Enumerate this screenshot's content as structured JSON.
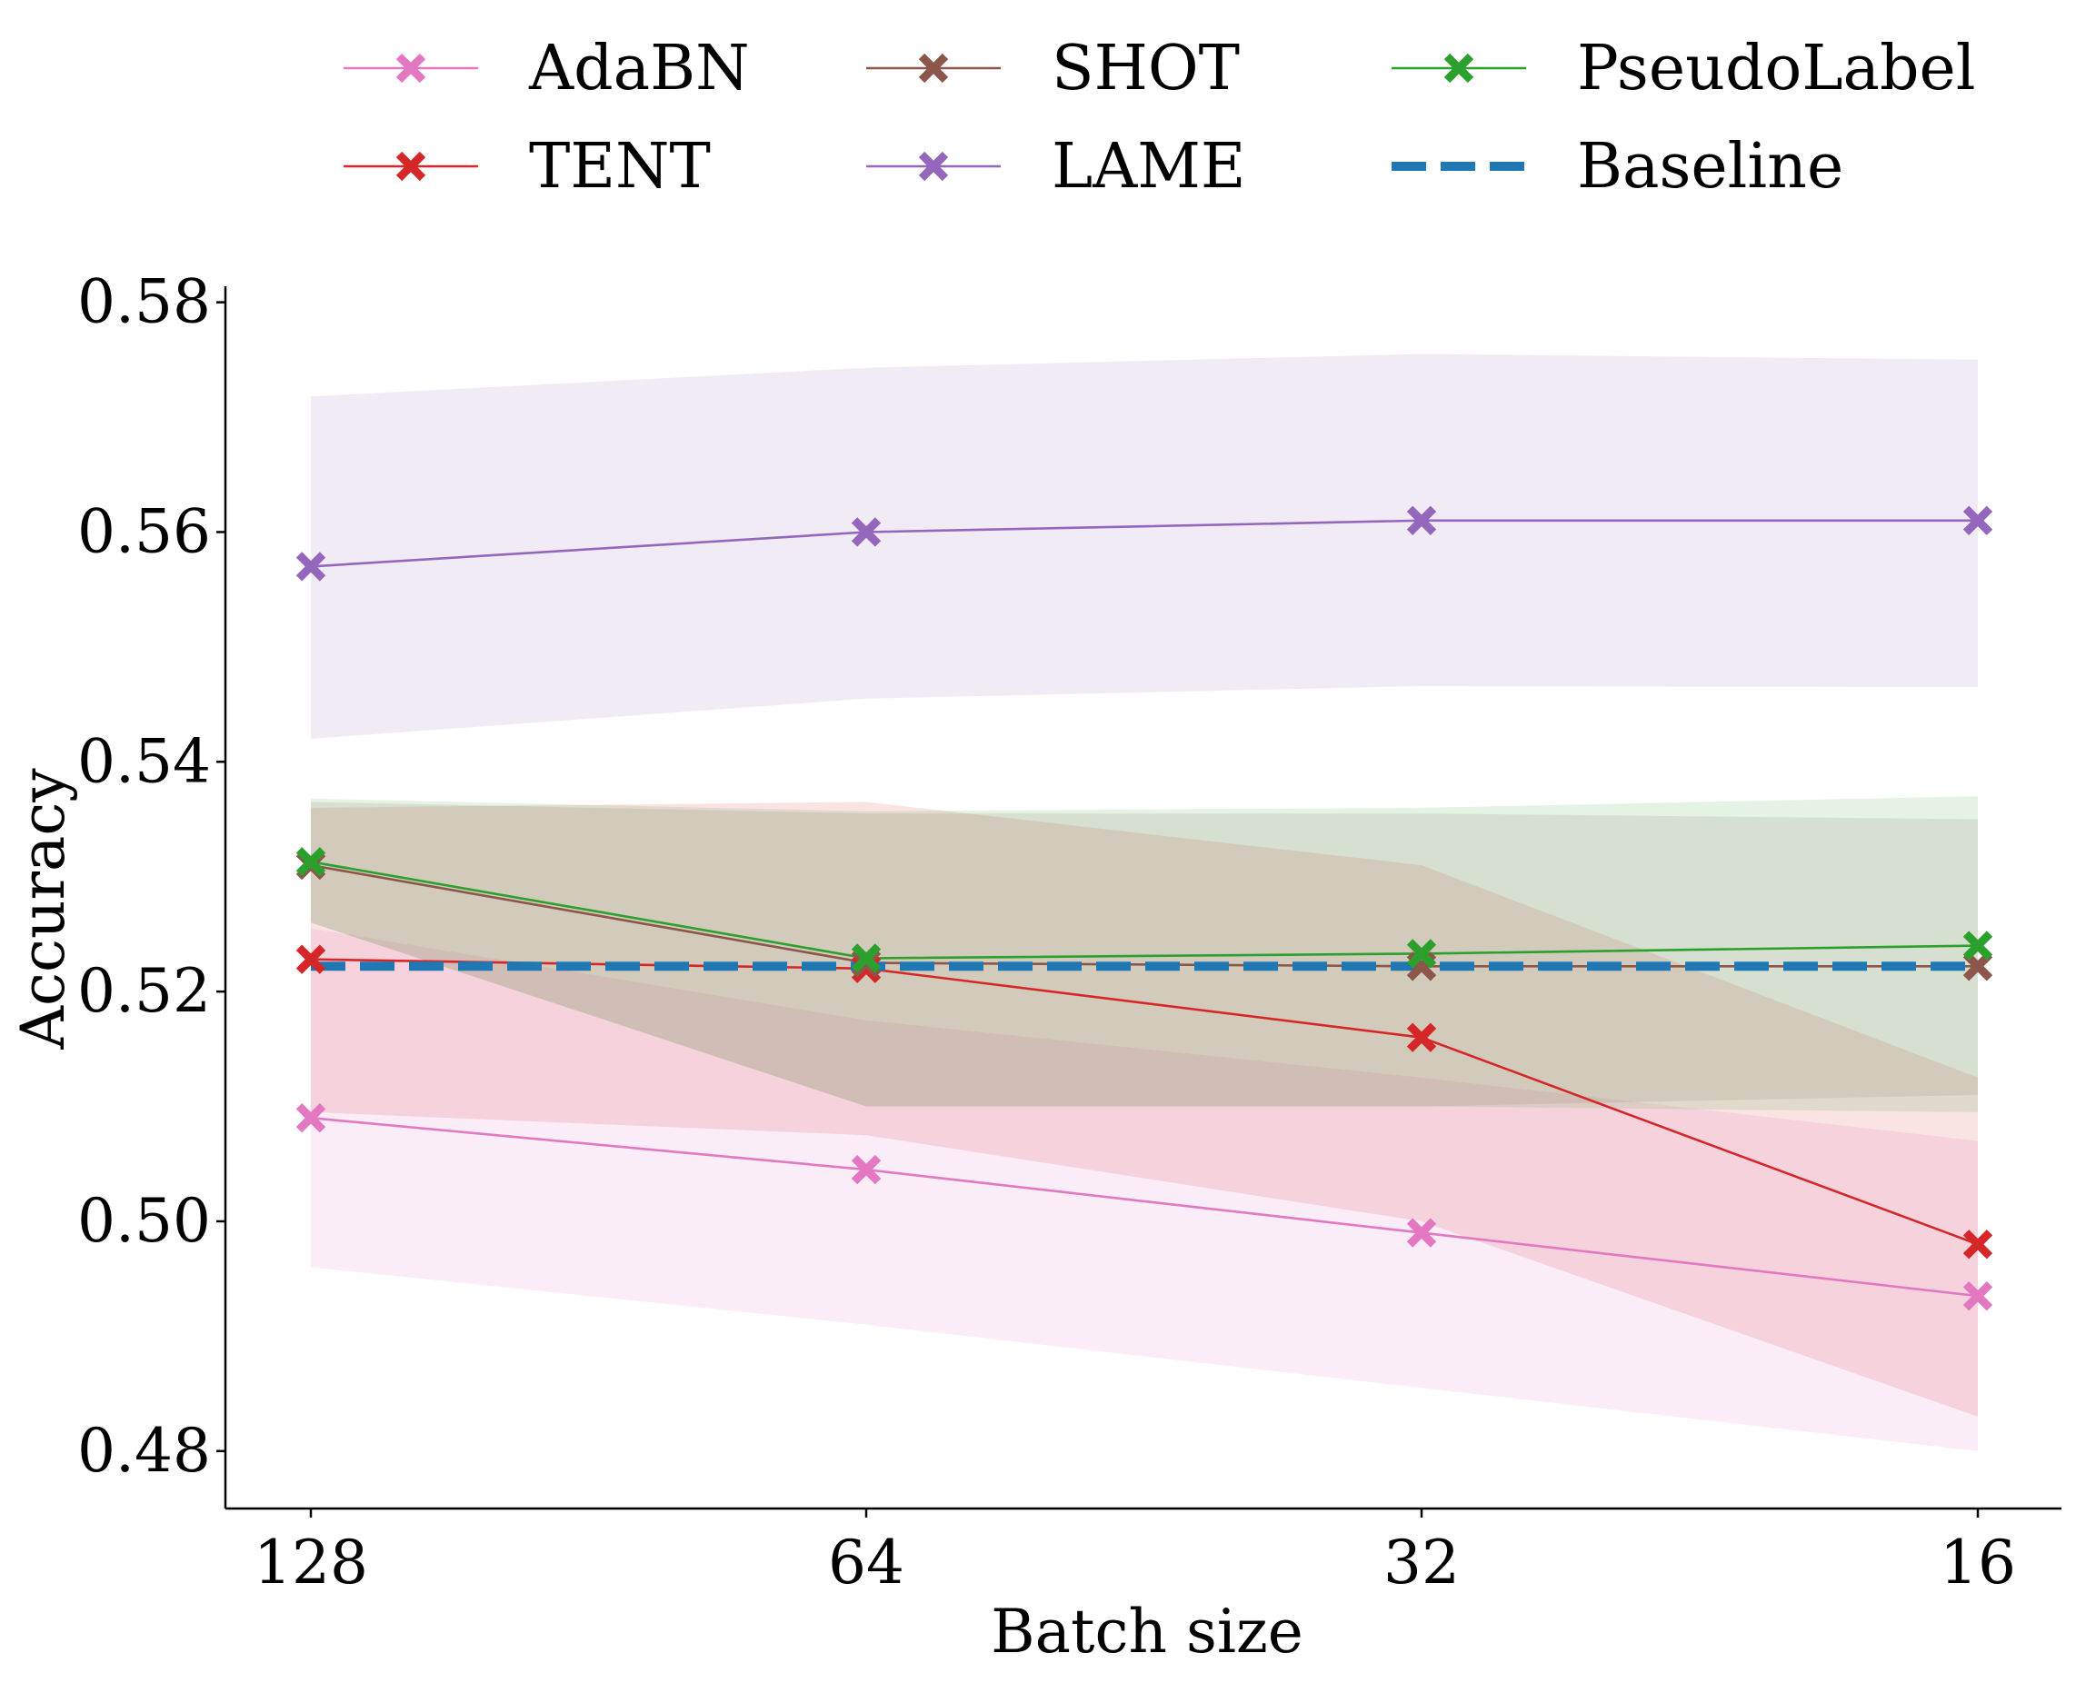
{
  "chart_data": {
    "type": "line",
    "title": "",
    "xlabel": "Batch size",
    "ylabel": "Accuracy",
    "categories": [
      "128",
      "64",
      "32",
      "16"
    ],
    "ylim": [
      0.475,
      0.581
    ],
    "yticks": [
      "0.48",
      "0.50",
      "0.52",
      "0.54",
      "0.56",
      "0.58"
    ],
    "ytick_values": [
      0.48,
      0.5,
      0.52,
      0.54,
      0.56,
      0.58
    ],
    "grid": false,
    "legend_position": "top",
    "series": [
      {
        "name": "AdaBN",
        "color": "#e377c2",
        "marker": "x",
        "values": [
          0.509,
          0.5045,
          0.499,
          0.4935
        ],
        "band_upper": [
          0.5255,
          0.5175,
          0.5125,
          0.507
        ],
        "band_lower": [
          0.496,
          0.491,
          0.4855,
          0.48
        ]
      },
      {
        "name": "TENT",
        "color": "#d62728",
        "marker": "x",
        "values": [
          0.5228,
          0.522,
          0.516,
          0.498
        ],
        "band_upper": [
          0.536,
          0.5365,
          0.531,
          0.5125
        ],
        "band_lower": [
          0.5095,
          0.5075,
          0.5,
          0.483
        ]
      },
      {
        "name": "SHOT",
        "color": "#8c564b",
        "marker": "x",
        "values": [
          0.531,
          0.5225,
          0.5222,
          0.5222
        ],
        "band_upper": [
          0.5365,
          0.5355,
          0.5355,
          0.535
        ],
        "band_lower": [
          0.526,
          0.51,
          0.51,
          0.511
        ]
      },
      {
        "name": "LAME",
        "color": "#9467bd",
        "marker": "x",
        "values": [
          0.557,
          0.56,
          0.561,
          0.561
        ],
        "band_upper": [
          0.5718,
          0.5743,
          0.5755,
          0.575
        ],
        "band_lower": [
          0.542,
          0.5455,
          0.5466,
          0.5465
        ]
      },
      {
        "name": "PseudoLabel",
        "color": "#2ca02c",
        "marker": "x",
        "values": [
          0.5313,
          0.5229,
          0.5233,
          0.524
        ],
        "band_upper": [
          0.5368,
          0.5357,
          0.536,
          0.537
        ],
        "band_lower": [
          0.526,
          0.51,
          0.51,
          0.5095
        ]
      },
      {
        "name": "Baseline",
        "color": "#1f77b4",
        "style": "dashed",
        "values": [
          0.5222,
          0.5222,
          0.5222,
          0.5222
        ]
      }
    ]
  }
}
